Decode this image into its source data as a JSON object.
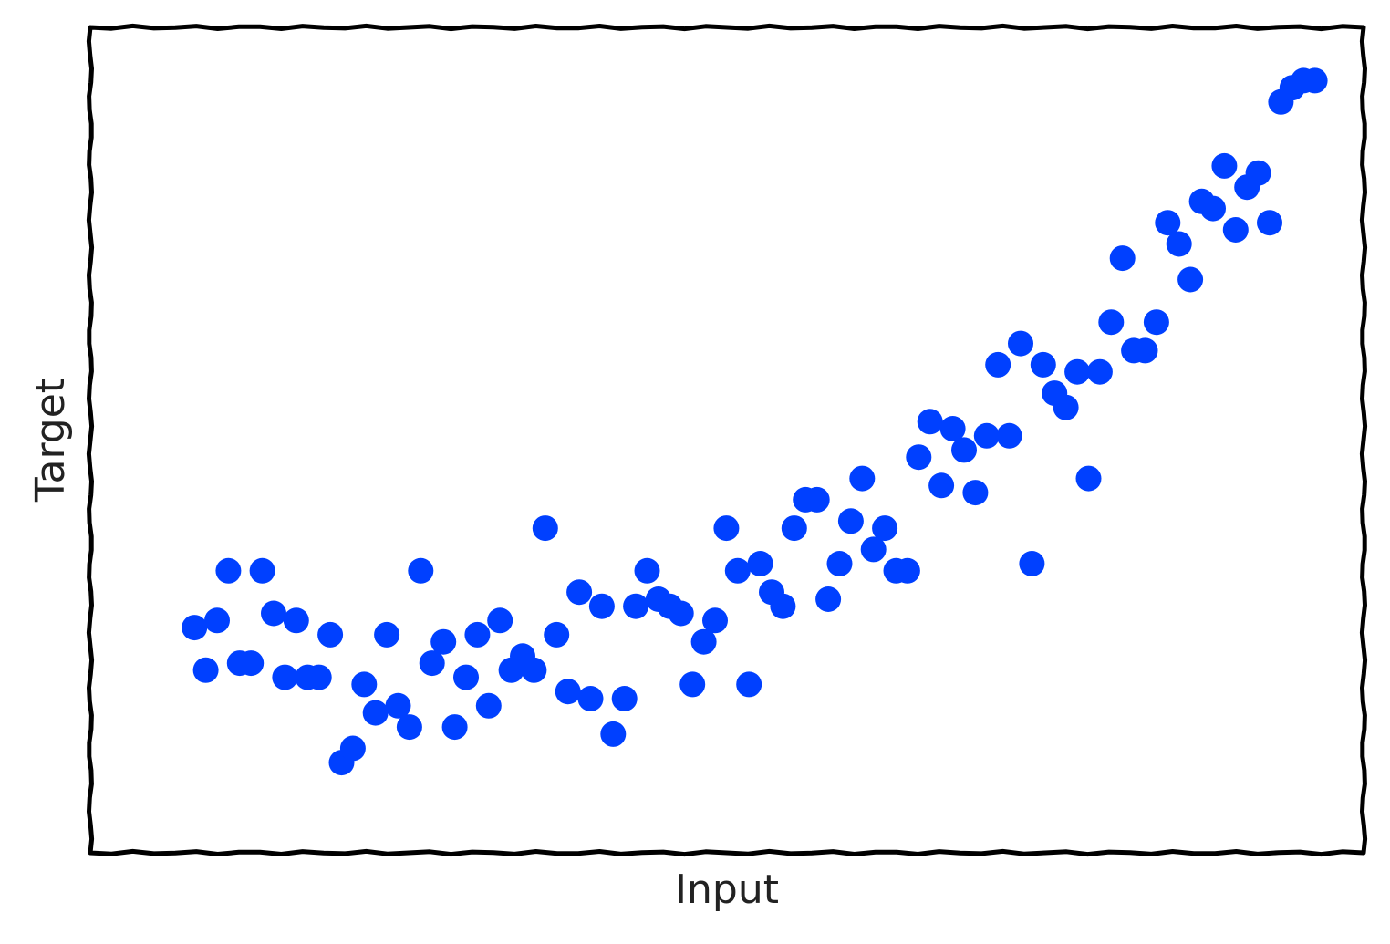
{
  "colors": {
    "point": "#0040ff",
    "frame": "#000000",
    "text": "#222222",
    "background": "#ffffff"
  },
  "chart_data": {
    "type": "scatter",
    "title": "",
    "xlabel": "Input",
    "ylabel": "Target",
    "style": "xkcd",
    "grid": false,
    "ticks": "none",
    "xlim": [
      0,
      1
    ],
    "ylim": [
      0,
      1
    ],
    "series": [
      {
        "values": [
          [
            0.04,
            0.23
          ],
          [
            0.05,
            0.17
          ],
          [
            0.06,
            0.24
          ],
          [
            0.07,
            0.31
          ],
          [
            0.08,
            0.18
          ],
          [
            0.09,
            0.18
          ],
          [
            0.1,
            0.31
          ],
          [
            0.11,
            0.25
          ],
          [
            0.12,
            0.16
          ],
          [
            0.13,
            0.24
          ],
          [
            0.14,
            0.16
          ],
          [
            0.15,
            0.16
          ],
          [
            0.16,
            0.22
          ],
          [
            0.17,
            0.04
          ],
          [
            0.18,
            0.06
          ],
          [
            0.19,
            0.15
          ],
          [
            0.2,
            0.11
          ],
          [
            0.21,
            0.22
          ],
          [
            0.22,
            0.12
          ],
          [
            0.23,
            0.09
          ],
          [
            0.24,
            0.31
          ],
          [
            0.25,
            0.18
          ],
          [
            0.26,
            0.21
          ],
          [
            0.27,
            0.09
          ],
          [
            0.28,
            0.16
          ],
          [
            0.29,
            0.22
          ],
          [
            0.3,
            0.12
          ],
          [
            0.31,
            0.24
          ],
          [
            0.32,
            0.17
          ],
          [
            0.33,
            0.19
          ],
          [
            0.34,
            0.17
          ],
          [
            0.35,
            0.37
          ],
          [
            0.36,
            0.22
          ],
          [
            0.37,
            0.14
          ],
          [
            0.38,
            0.28
          ],
          [
            0.39,
            0.13
          ],
          [
            0.4,
            0.26
          ],
          [
            0.41,
            0.08
          ],
          [
            0.42,
            0.13
          ],
          [
            0.43,
            0.26
          ],
          [
            0.44,
            0.31
          ],
          [
            0.45,
            0.27
          ],
          [
            0.46,
            0.26
          ],
          [
            0.47,
            0.25
          ],
          [
            0.48,
            0.15
          ],
          [
            0.49,
            0.21
          ],
          [
            0.5,
            0.24
          ],
          [
            0.51,
            0.37
          ],
          [
            0.52,
            0.31
          ],
          [
            0.53,
            0.15
          ],
          [
            0.54,
            0.32
          ],
          [
            0.55,
            0.28
          ],
          [
            0.56,
            0.26
          ],
          [
            0.57,
            0.37
          ],
          [
            0.58,
            0.41
          ],
          [
            0.59,
            0.41
          ],
          [
            0.6,
            0.27
          ],
          [
            0.61,
            0.32
          ],
          [
            0.62,
            0.38
          ],
          [
            0.63,
            0.44
          ],
          [
            0.64,
            0.34
          ],
          [
            0.65,
            0.37
          ],
          [
            0.66,
            0.31
          ],
          [
            0.67,
            0.31
          ],
          [
            0.68,
            0.47
          ],
          [
            0.69,
            0.52
          ],
          [
            0.7,
            0.43
          ],
          [
            0.71,
            0.51
          ],
          [
            0.72,
            0.48
          ],
          [
            0.73,
            0.42
          ],
          [
            0.74,
            0.5
          ],
          [
            0.75,
            0.6
          ],
          [
            0.76,
            0.5
          ],
          [
            0.77,
            0.63
          ],
          [
            0.78,
            0.32
          ],
          [
            0.79,
            0.6
          ],
          [
            0.8,
            0.56
          ],
          [
            0.81,
            0.54
          ],
          [
            0.82,
            0.59
          ],
          [
            0.83,
            0.44
          ],
          [
            0.84,
            0.59
          ],
          [
            0.85,
            0.66
          ],
          [
            0.86,
            0.75
          ],
          [
            0.87,
            0.62
          ],
          [
            0.88,
            0.62
          ],
          [
            0.89,
            0.66
          ],
          [
            0.9,
            0.8
          ],
          [
            0.91,
            0.77
          ],
          [
            0.92,
            0.72
          ],
          [
            0.93,
            0.83
          ],
          [
            0.94,
            0.82
          ],
          [
            0.95,
            0.88
          ],
          [
            0.96,
            0.79
          ],
          [
            0.97,
            0.85
          ],
          [
            0.98,
            0.87
          ],
          [
            0.99,
            0.8
          ],
          [
            1.0,
            0.97
          ],
          [
            1.01,
            0.99
          ],
          [
            1.02,
            1.0
          ],
          [
            1.03,
            1.0
          ]
        ]
      }
    ]
  }
}
